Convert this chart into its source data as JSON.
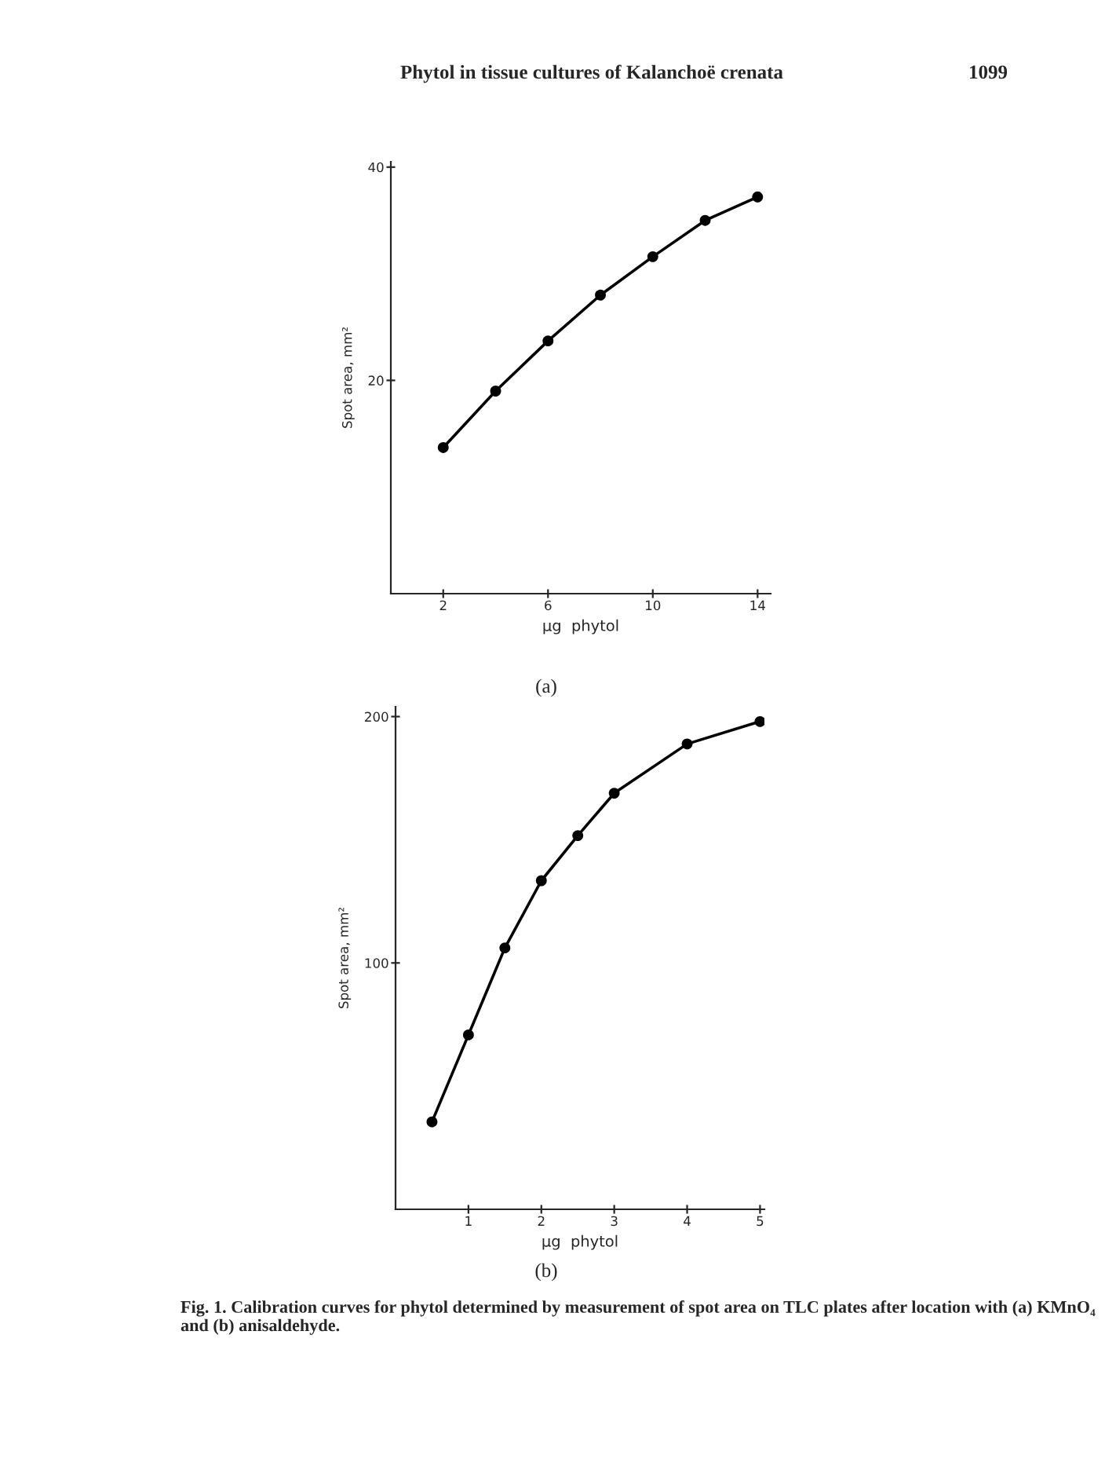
{
  "chart_data": [
    {
      "type": "line",
      "title": "Phytol in tissue cultures of Kalanchoë crenata",
      "xlabel": "μg  phytol",
      "ylabel": "Spot area, mm²",
      "annotations": [
        "1099",
        "(a)"
      ],
      "x": [
        2,
        4,
        6,
        8,
        10,
        12,
        14
      ],
      "series": [
        {
          "color": "#000000",
          "values": [
            13.7,
            19.0,
            23.7,
            28.0,
            31.6,
            35.0,
            37.2
          ]
        }
      ],
      "xlim": [
        0,
        14.5
      ],
      "xticks": [
        2,
        6,
        10,
        14
      ],
      "ylim": [
        0,
        40.5
      ],
      "yticks": [
        20,
        40
      ],
      "grid": false,
      "legend": false,
      "marker": "circle",
      "line_style": "solid"
    },
    {
      "type": "line",
      "xlabel": "μg  phytol",
      "ylabel": "Spot area, mm²",
      "annotations": [
        "(b)",
        "Fig. 1. Calibration curves for phytol determined by measurement of spot area on TLC plates after location with (a) KMnO₄ and (b) anisaldehyde."
      ],
      "x": [
        0.5,
        1,
        1.5,
        2,
        2.5,
        3,
        4,
        5
      ],
      "series": [
        {
          "color": "#000000",
          "values": [
            35.5,
            70.8,
            106.1,
            133.4,
            151.7,
            168.9,
            188.9,
            198.0
          ]
        }
      ],
      "xlim": [
        0,
        5.06
      ],
      "xticks": [
        1,
        2,
        3,
        4,
        5
      ],
      "ylim": [
        0,
        204
      ],
      "yticks": [
        100,
        200
      ],
      "grid": false,
      "legend": false,
      "marker": "circle",
      "line_style": "solid"
    }
  ]
}
